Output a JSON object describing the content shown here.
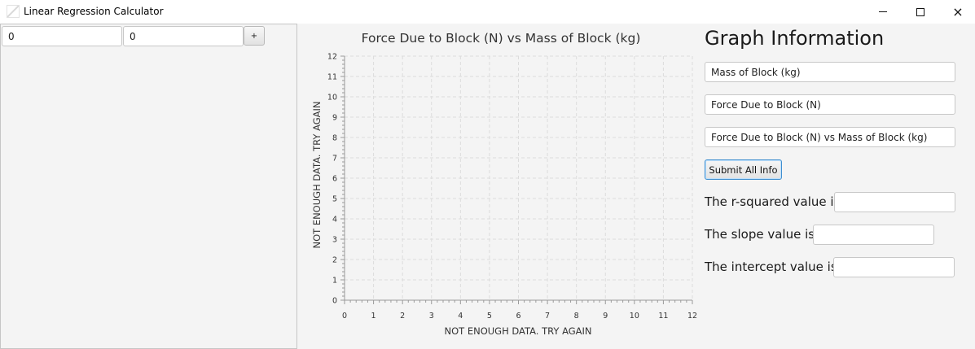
{
  "window": {
    "title": "Linear Regression Calculator",
    "icon": "app-icon",
    "controls": {
      "minimize": "minimize-icon",
      "maximize": "maximize-icon",
      "close": "×"
    }
  },
  "data_entry": {
    "x_value": "0",
    "y_value": "0",
    "add_label": "+"
  },
  "chart_data": {
    "type": "scatter",
    "title": "Force Due to Block (N) vs Mass of Block (kg)",
    "xlabel": "NOT ENOUGH DATA. TRY AGAIN",
    "ylabel": "NOT ENOUGH DATA. TRY AGAIN",
    "xlim": [
      0,
      12
    ],
    "ylim": [
      0,
      12
    ],
    "x_ticks": [
      0,
      1,
      2,
      3,
      4,
      5,
      6,
      7,
      8,
      9,
      10,
      11,
      12
    ],
    "y_ticks": [
      0,
      1,
      2,
      3,
      4,
      5,
      6,
      7,
      8,
      9,
      10,
      11,
      12
    ],
    "grid": true,
    "series": [],
    "colors": {
      "grid": "#dcdcdc",
      "axis": "#9a9a9a",
      "text": "#333333"
    }
  },
  "graph_info": {
    "heading": "Graph Information",
    "x_axis_field": "Mass of Block (kg)",
    "y_axis_field": "Force Due to Block (N)",
    "title_field": "Force Due to Block (N) vs Mass of Block (kg)",
    "submit_label": "Submit All Info"
  },
  "results": {
    "r_squared_label": "The r-squared value is:",
    "r_squared_value": "",
    "slope_label": "The slope value is:",
    "slope_value": "",
    "intercept_label": "The intercept value is:",
    "intercept_value": ""
  }
}
